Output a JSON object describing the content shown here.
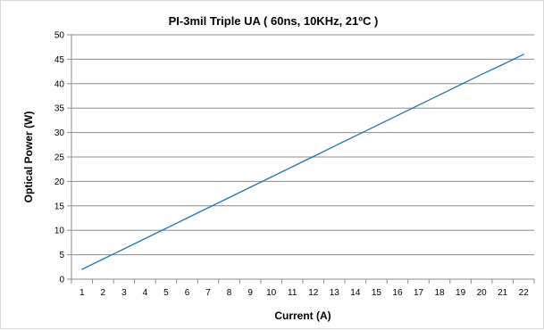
{
  "chart_data": {
    "type": "line",
    "title": "PI-3mil Triple UA  ( 60ns, 10KHz, 21ºC )",
    "xlabel": "Current (A)",
    "ylabel": "Optical Power (W)",
    "x_ticks": [
      1,
      2,
      3,
      4,
      5,
      6,
      7,
      8,
      9,
      10,
      11,
      12,
      13,
      14,
      15,
      16,
      17,
      18,
      19,
      20,
      21,
      22
    ],
    "y_ticks": [
      0,
      5,
      10,
      15,
      20,
      25,
      30,
      35,
      40,
      45,
      50
    ],
    "ylim": [
      0,
      50
    ],
    "grid": "horizontal",
    "legend": "none",
    "series": [
      {
        "x": [
          1,
          2,
          3,
          4,
          5,
          6,
          7,
          8,
          9,
          10,
          11,
          12,
          13,
          14,
          15,
          16,
          17,
          18,
          19,
          20,
          21,
          22
        ],
        "y": [
          2.0,
          4.1,
          6.2,
          8.3,
          10.4,
          12.5,
          14.6,
          16.7,
          18.8,
          20.9,
          23.0,
          25.1,
          27.2,
          29.3,
          31.4,
          33.5,
          35.6,
          37.7,
          39.8,
          41.9,
          43.9,
          46.0
        ],
        "color": "#1f77b4"
      }
    ]
  }
}
